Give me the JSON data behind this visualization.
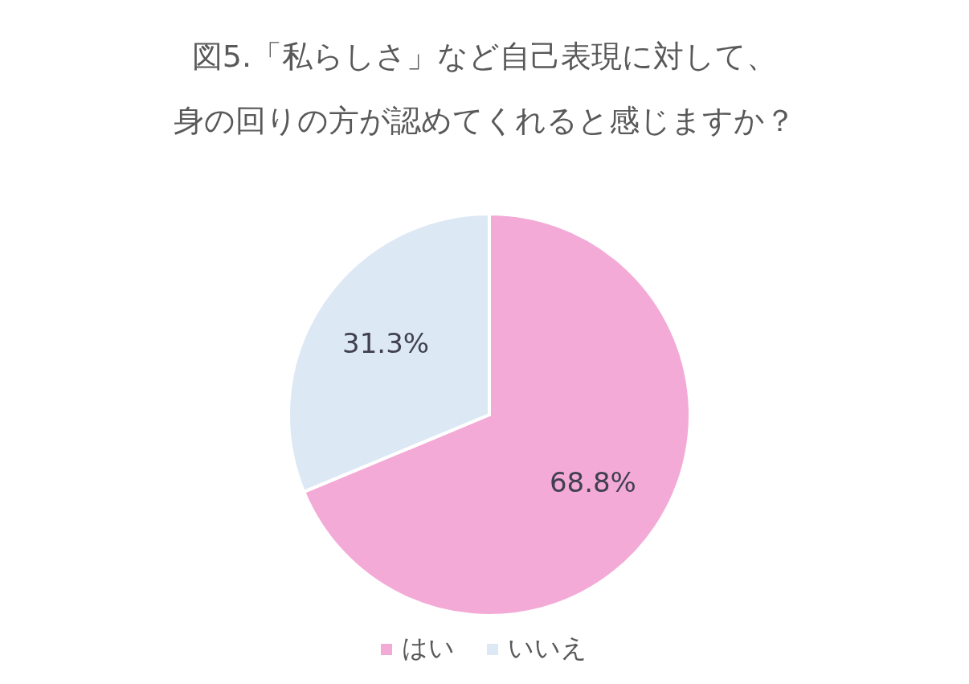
{
  "chart_data": {
    "type": "pie",
    "title": "図5.「私らしさ」など自己表現に対して、",
    "subtitle": "身の回りの方が認めてくれると感じますか？",
    "categories": [
      "はい",
      "いいえ"
    ],
    "values": [
      68.8,
      31.3
    ],
    "colors": [
      "#f4aad6",
      "#dde8f5"
    ],
    "value_labels": [
      "68.8%",
      "31.3%"
    ],
    "legend": "bottom"
  }
}
